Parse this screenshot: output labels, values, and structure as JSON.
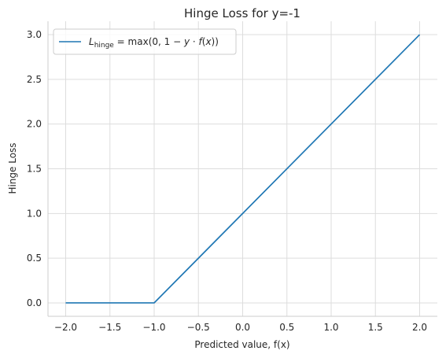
{
  "chart_data": {
    "type": "line",
    "title": "Hinge Loss for y=-1",
    "xlabel": "Predicted value, f(x)",
    "ylabel": "Hinge Loss",
    "xlim": [
      -2.2,
      2.2
    ],
    "ylim": [
      -0.15,
      3.15
    ],
    "xticks": [
      -2.0,
      -1.5,
      -1.0,
      -0.5,
      0.0,
      0.5,
      1.0,
      1.5,
      2.0
    ],
    "yticks": [
      0.0,
      0.5,
      1.0,
      1.5,
      2.0,
      2.5,
      3.0
    ],
    "xtick_labels": [
      "−2.0",
      "−1.5",
      "−1.0",
      "−0.5",
      "0.0",
      "0.5",
      "1.0",
      "1.5",
      "2.0"
    ],
    "ytick_labels": [
      "0.0",
      "0.5",
      "1.0",
      "1.5",
      "2.0",
      "2.5",
      "3.0"
    ],
    "grid": true,
    "legend_position": "top-left",
    "series": [
      {
        "name": "L_hinge = max(0, 1 − y · f(x))",
        "color": "#1f77b4",
        "x": [
          -2.0,
          -1.0,
          2.0
        ],
        "y": [
          0.0,
          0.0,
          3.0
        ]
      }
    ],
    "legend": {
      "symbol": "L",
      "subscript": "hinge",
      "formula_pre": " = max(0, 1 − ",
      "formula_y": "y",
      "formula_dot": " · ",
      "formula_f": "f",
      "formula_open": "(",
      "formula_x": "x",
      "formula_close": "))"
    }
  }
}
